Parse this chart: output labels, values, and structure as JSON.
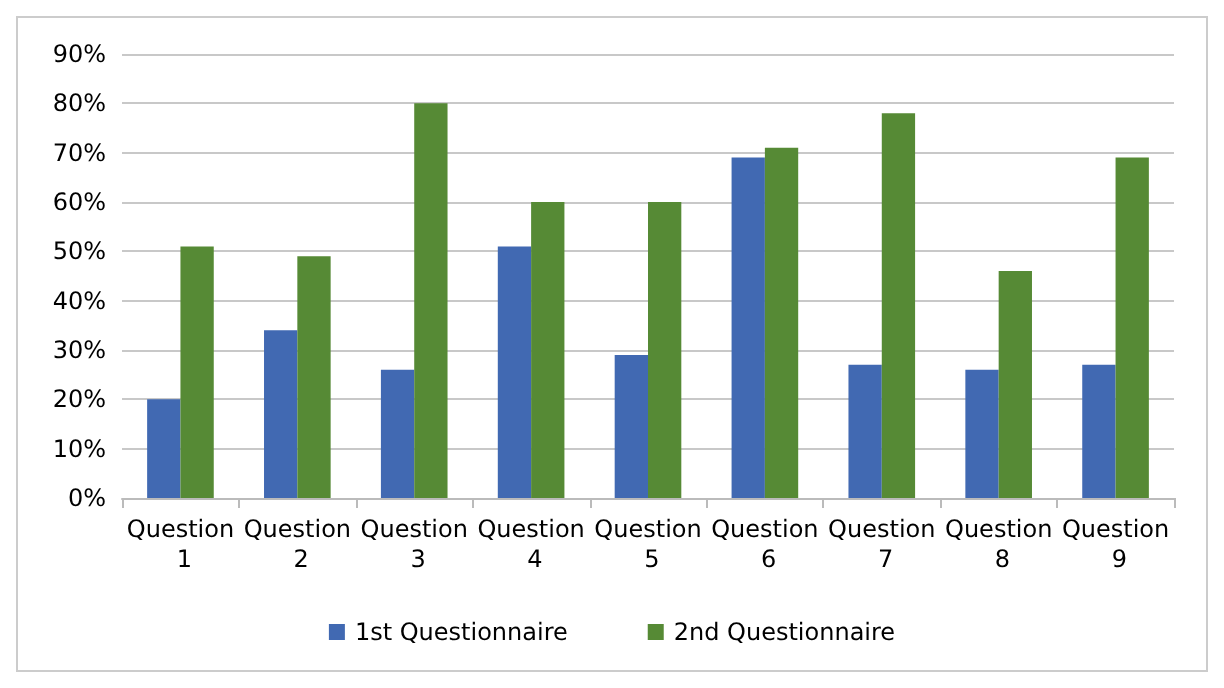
{
  "chart_data": {
    "type": "bar",
    "categories": [
      "Question 1",
      "Question 2",
      "Question 3",
      "Question 4",
      "Question 5",
      "Question 6",
      "Question 7",
      "Question 8",
      "Question 9"
    ],
    "series": [
      {
        "name": "1st Questionnaire",
        "color": "#4169b2",
        "values": [
          20,
          34,
          26,
          51,
          29,
          69,
          27,
          26,
          27
        ]
      },
      {
        "name": "2nd Questionnaire",
        "color": "#568a35",
        "values": [
          51,
          49,
          80,
          60,
          60,
          71,
          78,
          46,
          69
        ]
      }
    ],
    "ylim": [
      0,
      90
    ],
    "yticks": [
      {
        "value": 0,
        "label": "0%"
      },
      {
        "value": 10,
        "label": "10%"
      },
      {
        "value": 20,
        "label": "20%"
      },
      {
        "value": 30,
        "label": "30%"
      },
      {
        "value": 40,
        "label": "40%"
      },
      {
        "value": 50,
        "label": "50%"
      },
      {
        "value": 60,
        "label": "60%"
      },
      {
        "value": 70,
        "label": "70%"
      },
      {
        "value": 80,
        "label": "80%"
      },
      {
        "value": 90,
        "label": "90%"
      }
    ],
    "grid": "y",
    "legend": "bottom"
  }
}
